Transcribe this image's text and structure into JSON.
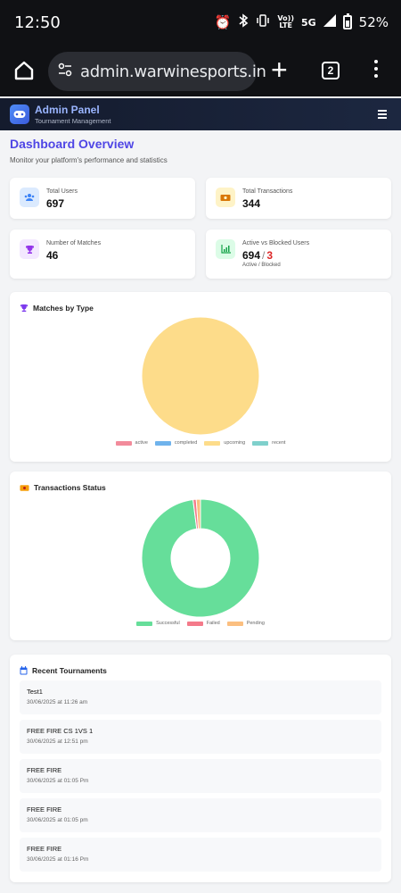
{
  "status_bar": {
    "time": "12:50",
    "network": "5G",
    "lte_top": "Vo))",
    "lte_bottom": "LTE",
    "battery": "52%"
  },
  "browser": {
    "url": "admin.warwinesports.in",
    "tab_count": "2"
  },
  "app_header": {
    "title": "Admin Panel",
    "subtitle": "Tournament Management"
  },
  "page": {
    "title": "Dashboard Overview",
    "subtitle": "Monitor your platform's performance and statistics"
  },
  "stats": {
    "total_users": {
      "label": "Total Users",
      "value": "697"
    },
    "total_transactions": {
      "label": "Total Transactions",
      "value": "344"
    },
    "number_of_matches": {
      "label": "Number of Matches",
      "value": "46"
    },
    "active_blocked": {
      "label": "Active vs Blocked Users",
      "active": "694",
      "separator": "/",
      "blocked": "3",
      "note": "Active / Blocked"
    }
  },
  "colors": {
    "accent": "#4f46e5",
    "active": "#f28b9b",
    "completed": "#6fb3ec",
    "upcoming": "#fddc8a",
    "recent": "#7fd0cc",
    "successful": "#66de9a",
    "failed": "#f47a8a",
    "pending": "#fbbf80",
    "blocked": "#dc2626"
  },
  "matches_chart": {
    "title": "Matches by Type",
    "icon": "trophy-icon"
  },
  "transactions_chart": {
    "title": "Transactions Status",
    "icon": "ticket-icon"
  },
  "chart_data": [
    {
      "type": "pie",
      "title": "Matches by Type",
      "categories": [
        "active",
        "completed",
        "upcoming",
        "recent"
      ],
      "values": [
        0,
        0,
        46,
        0
      ],
      "legend": "bottom"
    },
    {
      "type": "pie",
      "title": "Transactions Status",
      "categories": [
        "Successful",
        "Failed",
        "Pending"
      ],
      "values": [
        337,
        3,
        4
      ],
      "donut": true,
      "legend": "bottom"
    }
  ],
  "recent_tournaments": {
    "title": "Recent Tournaments",
    "items": [
      {
        "name": "Test1",
        "date": "30/06/2025 at 11:26 am"
      },
      {
        "name": "FREE FIRE CS 1VS 1",
        "date": "30/06/2025 at 12:51 pm"
      },
      {
        "name": "FREE FIRE",
        "date": "30/06/2025 at 01:05 Pm"
      },
      {
        "name": "FREE FIRE",
        "date": "30/06/2025 at 01:05 pm"
      },
      {
        "name": "FREE FIRE",
        "date": "30/06/2025 at 01:16 Pm"
      }
    ]
  }
}
